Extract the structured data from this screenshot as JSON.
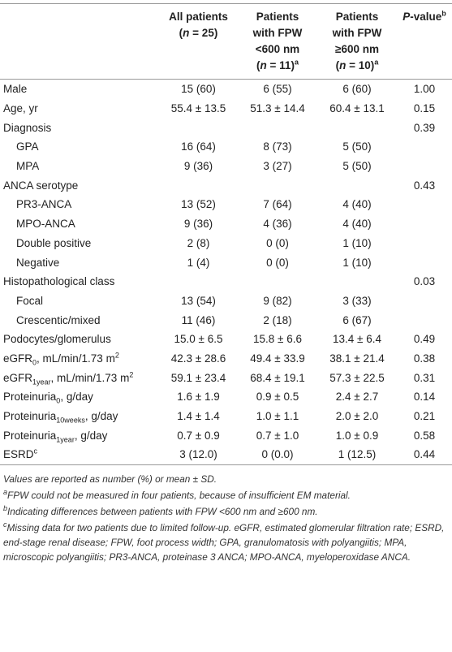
{
  "columns": [
    [
      "All patients",
      "(",
      "n",
      " = 25)"
    ],
    [
      "Patients",
      "with FPW",
      "<600 nm",
      "(",
      "n",
      " = 11)",
      "a"
    ],
    [
      "Patients",
      "with FPW",
      "≥600 nm",
      "(",
      "n",
      " = 10)",
      "a"
    ],
    [
      "P",
      "-value",
      "b"
    ]
  ],
  "rows": [
    {
      "label": "Male",
      "values": [
        "15 (60)",
        "6 (55)",
        "6 (60)",
        "1.00"
      ]
    },
    {
      "label": "Age, yr",
      "values": [
        "55.4 ± 13.5",
        "51.3 ± 14.4",
        "60.4 ± 13.1",
        "0.15"
      ]
    },
    {
      "label": "Diagnosis",
      "values": [
        null,
        null,
        null,
        "0.39"
      ]
    },
    {
      "label": "GPA",
      "indent": true,
      "values": [
        "16 (64)",
        "8 (73)",
        "5 (50)",
        null
      ]
    },
    {
      "label": "MPA",
      "indent": true,
      "values": [
        "9 (36)",
        "3 (27)",
        "5 (50)",
        null
      ]
    },
    {
      "label": "ANCA serotype",
      "values": [
        null,
        null,
        null,
        "0.43"
      ]
    },
    {
      "label": "PR3-ANCA",
      "indent": true,
      "values": [
        "13 (52)",
        "7 (64)",
        "4 (40)",
        null
      ]
    },
    {
      "label": "MPO-ANCA",
      "indent": true,
      "values": [
        "9 (36)",
        "4 (36)",
        "4 (40)",
        null
      ]
    },
    {
      "label": "Double positive",
      "indent": true,
      "values": [
        "2 (8)",
        "0 (0)",
        "1 (10)",
        null
      ]
    },
    {
      "label": "Negative",
      "indent": true,
      "values": [
        "1 (4)",
        "0 (0)",
        "1 (10)",
        null
      ]
    },
    {
      "label": "Histopathological class",
      "values": [
        null,
        null,
        null,
        "0.03"
      ]
    },
    {
      "label": "Focal",
      "indent": true,
      "values": [
        "13 (54)",
        "9 (82)",
        "3 (33)",
        null
      ]
    },
    {
      "label": "Crescentic/mixed",
      "indent": true,
      "values": [
        "11 (46)",
        "2 (18)",
        "6 (67)",
        null
      ]
    },
    {
      "label": "Podocytes/glomerulus",
      "values": [
        "15.0 ± 6.5",
        "15.8 ± 6.6",
        "13.4 ± 6.4",
        "0.49"
      ]
    },
    {
      "label": {
        "text": "eGFR",
        "sub": "0",
        "after": ", mL/min/1.73 m",
        "sup": "2"
      },
      "values": [
        "42.3 ± 28.6",
        "49.4 ± 33.9",
        "38.1 ± 21.4",
        "0.38"
      ]
    },
    {
      "label": {
        "text": "eGFR",
        "sub": "1year",
        "after": ", mL/min/1.73 m",
        "sup": "2"
      },
      "values": [
        "59.1 ± 23.4",
        "68.4 ± 19.1",
        "57.3 ± 22.5",
        "0.31"
      ]
    },
    {
      "label": {
        "text": "Proteinuria",
        "sub": "0",
        "after": ", g/day"
      },
      "values": [
        "1.6 ± 1.9",
        "0.9 ± 0.5",
        "2.4 ± 2.7",
        "0.14"
      ]
    },
    {
      "label": {
        "text": "Proteinuria",
        "sub": "10weeks",
        "after": ", g/day"
      },
      "values": [
        "1.4 ± 1.4",
        "1.0 ± 1.1",
        "2.0 ± 2.0",
        "0.21"
      ]
    },
    {
      "label": {
        "text": "Proteinuria",
        "sub": "1year",
        "after": ", g/day"
      },
      "values": [
        "0.7 ± 0.9",
        "0.7 ± 1.0",
        "1.0 ± 0.9",
        "0.58"
      ]
    },
    {
      "label": {
        "text": "ESRD",
        "sup": "c"
      },
      "values": [
        "3 (12.0)",
        "0 (0.0)",
        "1 (12.5)",
        "0.44"
      ]
    }
  ],
  "footnotes": [
    {
      "text": "Values are reported as number (%) or mean ± SD."
    },
    {
      "mark": "a",
      "text": "FPW could not be measured in four patients, because of insufficient EM material."
    },
    {
      "mark": "b",
      "text": "Indicating differences between patients with FPW <600 nm and ≥600 nm."
    },
    {
      "mark": "c",
      "text": "Missing data for two patients due to limited follow-up. eGFR, estimated glomerular filtration rate; ESRD, end-stage renal disease; FPW, foot process width; GPA, granulomatosis with polyangiitis; MPA, microscopic polyangiitis; PR3-ANCA, proteinase 3 ANCA; MPO-ANCA, myeloperoxidase ANCA."
    }
  ]
}
